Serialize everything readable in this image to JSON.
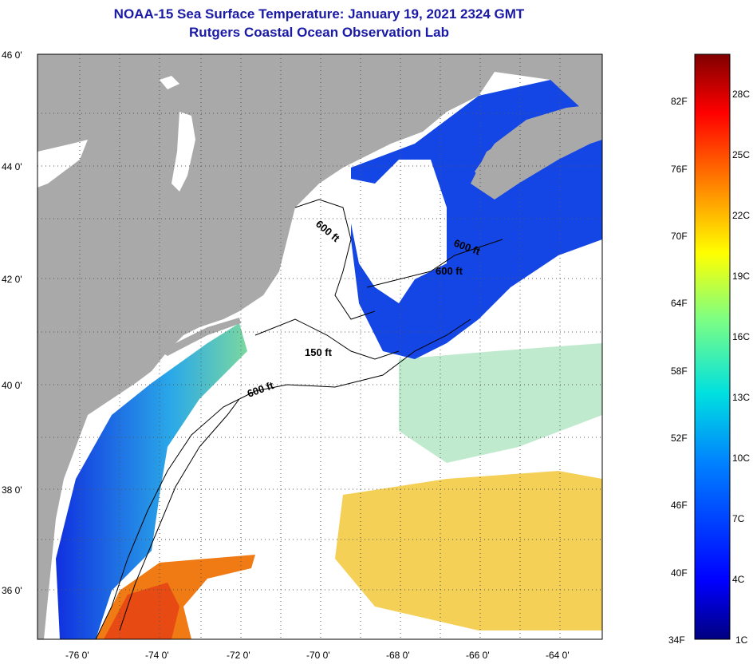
{
  "title": {
    "line1": "NOAA-15 Sea Surface Temperature:  January 19, 2021 2324 GMT",
    "line2": "Rutgers Coastal Ocean Observation Lab"
  },
  "map": {
    "lat_labels": [
      "46 0'",
      "44 0'",
      "42 0'",
      "40 0'",
      "38 0'",
      "36 0'"
    ],
    "lon_labels": [
      "-76 0'",
      "-74 0'",
      "-72 0'",
      "-70 0'",
      "-68 0'",
      "-66 0'",
      "-64 0'"
    ],
    "contour_labels": [
      "600 ft",
      "600 ft",
      "600 ft",
      "150 ft",
      "600 ft"
    ],
    "colors": {
      "land": "#a9a9a9",
      "cloud": "#ffffff",
      "cold": "#1446e6",
      "warm": "#f07a14"
    }
  },
  "colorbar": {
    "fahrenheit": [
      "82F",
      "76F",
      "70F",
      "64F",
      "58F",
      "52F",
      "46F",
      "40F",
      "34F"
    ],
    "celsius": [
      "28C",
      "25C",
      "22C",
      "19C",
      "16C",
      "13C",
      "10C",
      "7C",
      "4C",
      "1C"
    ],
    "range_c": [
      1,
      30
    ]
  }
}
